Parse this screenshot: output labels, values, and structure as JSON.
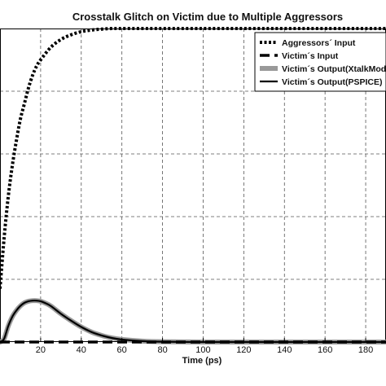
{
  "chart_data": {
    "type": "line",
    "title": "Crosstalk Glitch on Victim due to Multiple Aggressors",
    "xlabel": "Time (ps)",
    "ylabel": "",
    "xlim": [
      0,
      190
    ],
    "ylim": [
      0,
      1
    ],
    "x_ticks": [
      "20",
      "40",
      "60",
      "80",
      "100",
      "120",
      "140",
      "160",
      "180"
    ],
    "y_ticks": [],
    "grid": true,
    "legend_position": "top-right",
    "series": [
      {
        "name": "Aggressors´ Input",
        "style": "dotted-thick",
        "color": "#000000",
        "x": [
          0,
          2,
          4,
          6,
          8,
          10,
          12,
          14,
          16,
          18,
          20,
          25,
          30,
          35,
          40,
          45,
          50,
          55,
          60,
          70,
          80,
          100,
          120,
          140,
          160,
          180,
          190
        ],
        "y": [
          0.17,
          0.33,
          0.46,
          0.56,
          0.64,
          0.71,
          0.76,
          0.81,
          0.85,
          0.88,
          0.9,
          0.94,
          0.965,
          0.98,
          0.99,
          0.995,
          0.998,
          1.0,
          1.0,
          1.0,
          1.0,
          1.0,
          1.0,
          1.0,
          1.0,
          1.0,
          1.0
        ]
      },
      {
        "name": "Victim´s Input",
        "style": "dashed-thick",
        "color": "#000000",
        "x": [
          0,
          190
        ],
        "y": [
          0.0,
          0.0
        ]
      },
      {
        "name": "Victim´s Output(XtalkModel)",
        "style": "solid-wide",
        "color": "#999999",
        "x": [
          0,
          2,
          4,
          6,
          8,
          10,
          12,
          14,
          16,
          18,
          20,
          22,
          25,
          30,
          35,
          40,
          45,
          50,
          55,
          60,
          70,
          80,
          100,
          120,
          140,
          160,
          180,
          190
        ],
        "y": [
          0.0,
          0.01,
          0.05,
          0.08,
          0.1,
          0.115,
          0.125,
          0.13,
          0.132,
          0.132,
          0.13,
          0.125,
          0.115,
          0.09,
          0.068,
          0.048,
          0.032,
          0.021,
          0.013,
          0.008,
          0.003,
          0.001,
          0.0,
          0.0,
          0.0,
          0.0,
          0.0,
          0.0
        ]
      },
      {
        "name": "Victim´s Output(PSPICE)",
        "style": "solid",
        "color": "#000000",
        "x": [
          0,
          2,
          4,
          6,
          8,
          10,
          12,
          14,
          16,
          18,
          20,
          22,
          25,
          30,
          35,
          40,
          45,
          50,
          55,
          60,
          70,
          80,
          100,
          120,
          140,
          160,
          180,
          190
        ],
        "y": [
          0.0,
          0.01,
          0.05,
          0.08,
          0.1,
          0.115,
          0.125,
          0.13,
          0.132,
          0.132,
          0.13,
          0.125,
          0.115,
          0.09,
          0.068,
          0.048,
          0.032,
          0.021,
          0.013,
          0.008,
          0.003,
          0.001,
          0.0,
          0.0,
          0.0,
          0.0,
          0.0,
          0.0
        ]
      }
    ]
  }
}
